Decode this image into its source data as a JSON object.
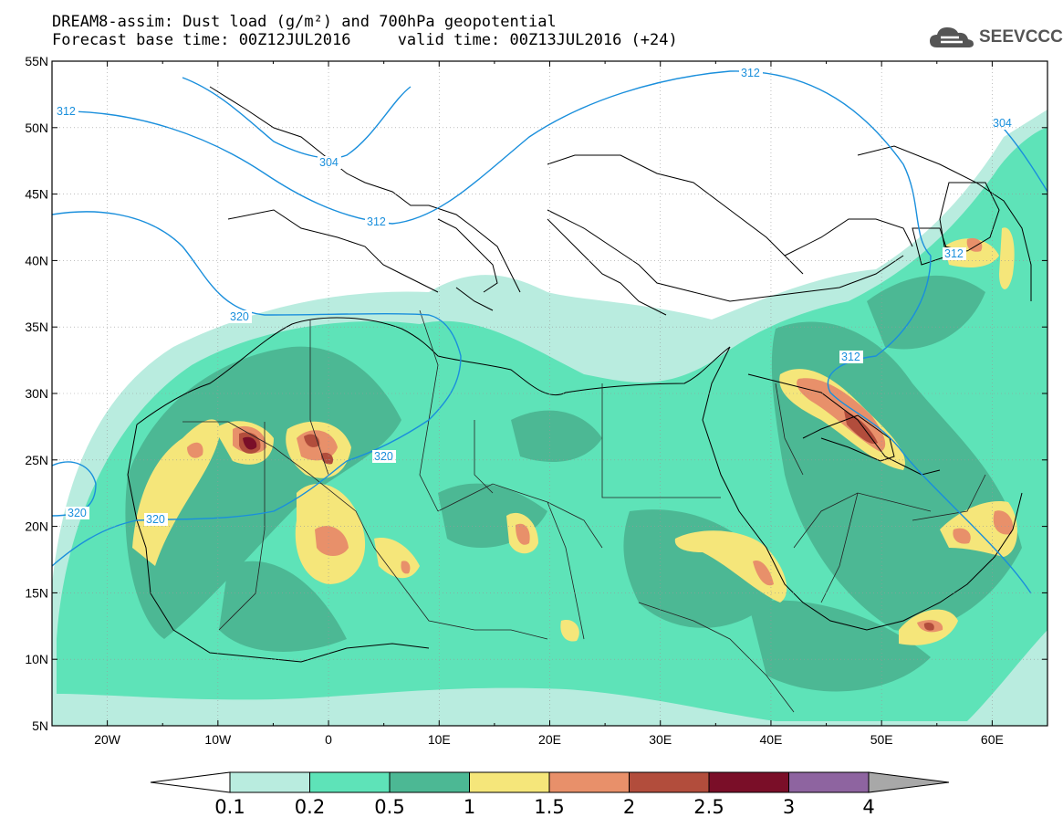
{
  "header": {
    "title_line1": "DREAM8-assim: Dust load (g/m²) and 700hPa geopotential",
    "title_line2": "Forecast base time: 00Z12JUL2016     valid time: 00Z13JUL2016 (+24)",
    "logo_text": "SEEVCCC"
  },
  "map": {
    "lon_range": [
      -25,
      65
    ],
    "lat_range": [
      5,
      55
    ],
    "lat_labels": [
      "55N",
      "50N",
      "45N",
      "40N",
      "35N",
      "30N",
      "25N",
      "20N",
      "15N",
      "10N",
      "5N"
    ],
    "lon_labels": [
      "20W",
      "10W",
      "0",
      "10E",
      "20E",
      "30E",
      "40E",
      "50E",
      "60E"
    ],
    "contour_labels": [
      "312",
      "304",
      "312",
      "320",
      "320",
      "320",
      "312",
      "312",
      "304"
    ]
  },
  "colorbar": {
    "tick_labels": [
      "0.1",
      "0.2",
      "0.5",
      "1",
      "1.5",
      "2",
      "2.5",
      "3",
      "4"
    ],
    "colors": [
      "#ffffff",
      "#b9ecdf",
      "#5ee3b8",
      "#4cb894",
      "#f5e67a",
      "#e8906a",
      "#b24d3c",
      "#7a0e28",
      "#8e64a0",
      "#a8a8a8"
    ]
  }
}
